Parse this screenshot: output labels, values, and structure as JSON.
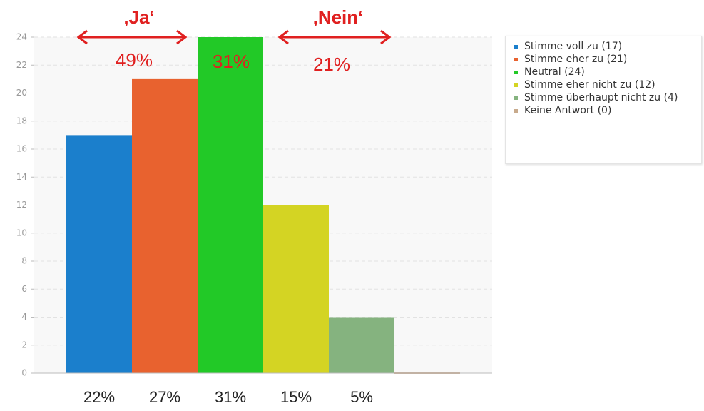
{
  "chart_data": {
    "type": "bar",
    "categories": [
      "Stimme voll zu (17)",
      "Stimme eher zu (21)",
      "Neutral (24)",
      "Stimme eher nicht zu (12)",
      "Stimme überhaupt nicht zu (4)",
      "Keine Antwort (0)"
    ],
    "values": [
      17,
      21,
      24,
      12,
      4,
      0
    ],
    "colors": [
      "#1b7fcc",
      "#e8622f",
      "#22c927",
      "#d4d423",
      "#85b37f",
      "#c8aa8c"
    ],
    "percent_labels": [
      "22%",
      "27%",
      "31%",
      "15%",
      "5%",
      null
    ],
    "annotations": [
      "‚Ja‘",
      "49%",
      "31%",
      "‚Nein‘",
      "21%"
    ],
    "ylim": [
      0,
      24
    ],
    "yticks": [
      0,
      2,
      4,
      6,
      8,
      10,
      12,
      14,
      16,
      18,
      20,
      22,
      24
    ],
    "grid": true
  }
}
